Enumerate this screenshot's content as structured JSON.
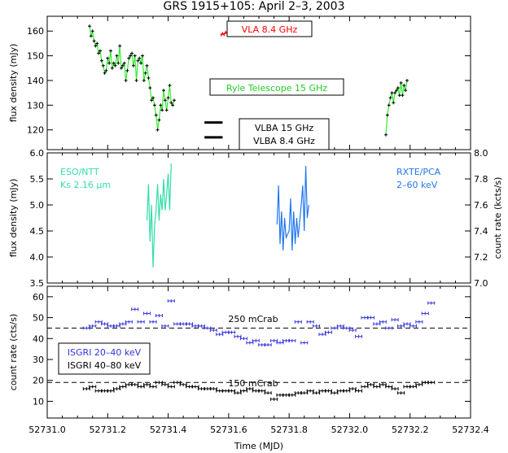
{
  "title": "GRS 1915+105: April 2–3, 2003",
  "x_axis": {
    "label": "Time (MJD)",
    "range": [
      52731.0,
      52732.4
    ],
    "ticks": [
      52731.0,
      52731.2,
      52731.4,
      52731.6,
      52731.8,
      52732.0,
      52732.2,
      52732.4
    ],
    "tick_labels": [
      "52731.0",
      "52731.2",
      "52731.4",
      "52731.6",
      "52731.8",
      "52732.0",
      "52732.2",
      "52732.4"
    ]
  },
  "chart_data": [
    {
      "type": "line",
      "panel": "radio",
      "ylabel": "flux density (mJy)",
      "ylim": [
        112,
        166
      ],
      "yticks": [
        120,
        130,
        140,
        150,
        160
      ],
      "labels": {
        "vla": "VLA 8.4 GHz",
        "ryle": "Ryle Telescope 15 GHz",
        "vlba15": "VLBA 15 GHz",
        "vlba84": "VLBA 8.4 GHz"
      },
      "colors": {
        "vla": "#ff0000",
        "ryle": "#33ee33",
        "vlba": "#000000"
      },
      "series": [
        {
          "name": "Ryle Telescope 15 GHz",
          "x": [
            52731.14,
            52731.145,
            52731.15,
            52731.155,
            52731.16,
            52731.165,
            52731.17,
            52731.175,
            52731.18,
            52731.185,
            52731.19,
            52731.195,
            52731.2,
            52731.205,
            52731.21,
            52731.215,
            52731.22,
            52731.225,
            52731.23,
            52731.235,
            52731.24,
            52731.245,
            52731.25,
            52731.255,
            52731.26,
            52731.265,
            52731.27,
            52731.275,
            52731.28,
            52731.285,
            52731.29,
            52731.295,
            52731.3,
            52731.305,
            52731.31,
            52731.315,
            52731.32,
            52731.325,
            52731.33,
            52731.335,
            52731.34,
            52731.345,
            52731.35,
            52731.355,
            52731.36,
            52731.365,
            52731.37,
            52731.375,
            52731.38,
            52731.385,
            52731.39,
            52731.395,
            52731.4,
            52731.405,
            52731.41,
            52731.415,
            52731.42
          ],
          "y": [
            162,
            158,
            160,
            156,
            154,
            155,
            151,
            152,
            148,
            146,
            143,
            144,
            149,
            147,
            152,
            145,
            147,
            146,
            150,
            147,
            154,
            145,
            146,
            147,
            140,
            144,
            149,
            150,
            151,
            146,
            150,
            140,
            148,
            149,
            147,
            150,
            140,
            143,
            146,
            141,
            137,
            132,
            133,
            130,
            126,
            120,
            124,
            130,
            128,
            136,
            132,
            128,
            133,
            138,
            131,
            130,
            132
          ]
        },
        {
          "name": "Ryle Telescope 15 GHz (late)",
          "x": [
            52732.12,
            52732.125,
            52732.13,
            52732.135,
            52732.14,
            52732.145,
            52732.15,
            52732.155,
            52732.16,
            52732.165,
            52732.17,
            52732.175,
            52732.18,
            52732.185,
            52732.19
          ],
          "y": [
            118,
            126,
            130,
            133,
            135,
            131,
            135,
            136,
            137,
            134,
            139,
            134,
            138,
            136,
            140
          ]
        },
        {
          "name": "VLA 8.4 GHz",
          "x": [
            52731.575,
            52731.58,
            52731.585,
            52731.59,
            52731.595,
            52731.6,
            52731.605
          ],
          "y": [
            158.5,
            159,
            158.6,
            159.5,
            159.2,
            160,
            160.5
          ]
        }
      ],
      "vlba": [
        {
          "name": "VLBA 15 GHz",
          "x": [
            52731.52,
            52731.58
          ],
          "y": 123
        },
        {
          "name": "VLBA 8.4 GHz",
          "x": [
            52731.52,
            52731.58
          ],
          "y": 117
        }
      ]
    },
    {
      "type": "line",
      "panel": "ir_xray",
      "ylabel": "flux density (mJy)",
      "ylabel_right": "count rate (kcts/s)",
      "ylim": [
        3.5,
        6.0
      ],
      "yticks": [
        3.5,
        4.0,
        4.5,
        5.0,
        5.5,
        6.0
      ],
      "ylim_right": [
        7.0,
        8.0
      ],
      "yticks_right": [
        7.0,
        7.2,
        7.4,
        7.6,
        7.8,
        8.0
      ],
      "labels": {
        "eso_line1": "ESO/NTT",
        "eso_line2": "Ks 2.16 μm",
        "rxte_line1": "RXTE/PCA",
        "rxte_line2": "2–60 keV"
      },
      "colors": {
        "eso": "#33ddaa",
        "rxte": "#2277ee"
      },
      "series": [
        {
          "name": "ESO/NTT Ks 2.16 μm",
          "x": [
            52731.33,
            52731.335,
            52731.34,
            52731.345,
            52731.35,
            52731.355,
            52731.36,
            52731.365,
            52731.37,
            52731.375,
            52731.38,
            52731.385,
            52731.39,
            52731.395,
            52731.4,
            52731.405,
            52731.41
          ],
          "y": [
            4.7,
            5.4,
            4.3,
            5.0,
            3.8,
            4.6,
            4.9,
            5.4,
            4.7,
            5.2,
            4.9,
            5.5,
            4.9,
            5.2,
            5.6,
            4.9,
            5.8
          ]
        },
        {
          "name": "RXTE/PCA 2–60 keV",
          "x": [
            52731.76,
            52731.765,
            52731.77,
            52731.775,
            52731.78,
            52731.785,
            52731.79,
            52731.8,
            52731.805,
            52731.81,
            52731.815,
            52731.82,
            52731.825,
            52731.83,
            52731.84,
            52731.845,
            52731.85,
            52731.855,
            52731.86,
            52731.865
          ],
          "y": [
            7.45,
            7.75,
            7.3,
            7.55,
            7.25,
            7.5,
            7.35,
            7.4,
            7.65,
            7.25,
            7.55,
            7.3,
            7.5,
            7.35,
            7.6,
            7.75,
            7.4,
            7.9,
            7.5,
            7.6
          ]
        }
      ]
    },
    {
      "type": "scatter",
      "panel": "integral",
      "ylabel": "count rate (cts/s)",
      "ylim": [
        2,
        65
      ],
      "yticks": [
        10,
        20,
        30,
        40,
        50,
        60
      ],
      "labels": {
        "isgri_low": "ISGRI 20–40 keV",
        "isgri_high": "ISGRI 40–80 keV",
        "ref250": "250 mCrab",
        "ref150": "150 mCrab"
      },
      "colors": {
        "isgri_low": "#3333dd",
        "isgri_high": "#000000"
      },
      "reference_lines": [
        {
          "name": "250 mCrab",
          "y": 45
        },
        {
          "name": "150 mCrab",
          "y": 19
        }
      ],
      "series": [
        {
          "name": "ISGRI 20–40 keV",
          "x": [
            52731.13,
            52731.15,
            52731.17,
            52731.19,
            52731.21,
            52731.23,
            52731.25,
            52731.27,
            52731.29,
            52731.31,
            52731.33,
            52731.35,
            52731.37,
            52731.39,
            52731.41,
            52731.43,
            52731.45,
            52731.47,
            52731.49,
            52731.51,
            52731.53,
            52731.55,
            52731.57,
            52731.59,
            52731.61,
            52731.63,
            52731.65,
            52731.67,
            52731.69,
            52731.71,
            52731.73,
            52731.75,
            52731.77,
            52731.79,
            52731.81,
            52731.83,
            52731.85,
            52731.87,
            52731.89,
            52731.91,
            52731.93,
            52731.95,
            52731.97,
            52731.99,
            52732.01,
            52732.03,
            52732.05,
            52732.07,
            52732.09,
            52732.11,
            52732.13,
            52732.15,
            52732.17,
            52732.19,
            52732.21,
            52732.23,
            52732.25,
            52732.27
          ],
          "y": [
            45,
            46,
            48,
            47,
            46,
            46,
            47,
            48,
            54,
            48,
            52,
            48,
            51,
            46,
            58,
            47,
            47,
            47,
            46,
            46,
            45,
            44,
            42,
            43,
            43,
            41,
            40,
            38,
            39,
            37,
            37,
            39,
            38,
            39,
            39,
            48,
            38,
            48,
            46,
            42,
            43,
            45,
            46,
            45,
            44,
            41,
            50,
            50,
            47,
            48,
            45,
            49,
            46,
            47,
            46,
            48,
            52,
            57
          ]
        },
        {
          "name": "ISGRI 40–80 keV",
          "x": [
            52731.13,
            52731.15,
            52731.17,
            52731.19,
            52731.21,
            52731.23,
            52731.25,
            52731.27,
            52731.29,
            52731.31,
            52731.33,
            52731.35,
            52731.37,
            52731.39,
            52731.41,
            52731.43,
            52731.45,
            52731.47,
            52731.49,
            52731.51,
            52731.53,
            52731.55,
            52731.57,
            52731.59,
            52731.61,
            52731.63,
            52731.65,
            52731.67,
            52731.69,
            52731.71,
            52731.73,
            52731.75,
            52731.77,
            52731.79,
            52731.81,
            52731.83,
            52731.85,
            52731.87,
            52731.89,
            52731.91,
            52731.93,
            52731.95,
            52731.97,
            52731.99,
            52732.01,
            52732.03,
            52732.05,
            52732.07,
            52732.09,
            52732.11,
            52732.13,
            52732.15,
            52732.17,
            52732.19,
            52732.21,
            52732.23,
            52732.25,
            52732.27
          ],
          "y": [
            16,
            17,
            15,
            15,
            15,
            16,
            17,
            18,
            18,
            17,
            18,
            17,
            19,
            18,
            17,
            19,
            18,
            17,
            17,
            16,
            16,
            16,
            15,
            15,
            15,
            14,
            15,
            16,
            15,
            15,
            14,
            11,
            13,
            13,
            13,
            14,
            14,
            15,
            14,
            15,
            15,
            14,
            15,
            15,
            16,
            15,
            17,
            18,
            17,
            18,
            17,
            16,
            14,
            17,
            17,
            18,
            19,
            19
          ]
        }
      ]
    }
  ]
}
